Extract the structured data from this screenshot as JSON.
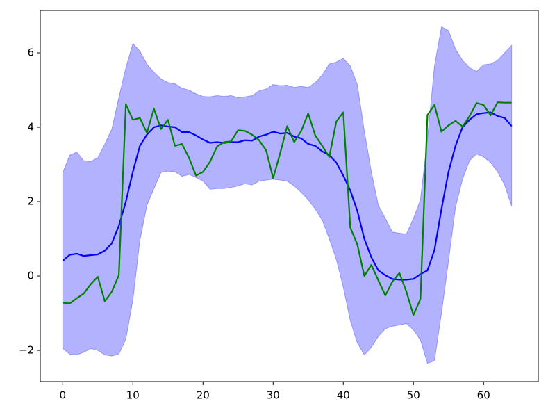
{
  "chart_data": {
    "type": "line",
    "x": [
      0,
      1,
      2,
      3,
      4,
      5,
      6,
      7,
      8,
      9,
      10,
      11,
      12,
      13,
      14,
      15,
      16,
      17,
      18,
      19,
      20,
      21,
      22,
      23,
      24,
      25,
      26,
      27,
      28,
      29,
      30,
      31,
      32,
      33,
      34,
      35,
      36,
      37,
      38,
      39,
      40,
      41,
      42,
      43,
      44,
      45,
      46,
      47,
      48,
      49,
      50,
      51,
      52,
      53,
      54,
      55,
      56,
      57,
      58,
      59,
      60,
      61,
      62,
      63,
      64
    ],
    "band": {
      "color": "#0000ff",
      "upper": [
        2.78,
        3.25,
        3.33,
        3.1,
        3.08,
        3.18,
        3.55,
        3.95,
        4.8,
        5.6,
        6.25,
        6.05,
        5.7,
        5.48,
        5.3,
        5.2,
        5.17,
        5.05,
        5.0,
        4.9,
        4.83,
        4.82,
        4.85,
        4.83,
        4.85,
        4.8,
        4.82,
        4.85,
        4.98,
        5.03,
        5.15,
        5.12,
        5.13,
        5.07,
        5.1,
        5.07,
        5.2,
        5.4,
        5.7,
        5.75,
        5.85,
        5.65,
        5.15,
        3.9,
        2.8,
        1.9,
        1.55,
        1.18,
        1.15,
        1.13,
        1.55,
        2.05,
        3.7,
        5.65,
        6.7,
        6.6,
        6.1,
        5.8,
        5.6,
        5.5,
        5.68,
        5.7,
        5.8,
        6.0,
        6.2
      ],
      "lower": [
        -1.95,
        -2.1,
        -2.12,
        -2.05,
        -1.95,
        -2.0,
        -2.12,
        -2.15,
        -2.1,
        -1.7,
        -0.65,
        0.95,
        1.9,
        2.35,
        2.78,
        2.82,
        2.8,
        2.68,
        2.73,
        2.65,
        2.55,
        2.33,
        2.35,
        2.35,
        2.38,
        2.42,
        2.48,
        2.45,
        2.55,
        2.58,
        2.6,
        2.58,
        2.55,
        2.42,
        2.25,
        2.05,
        1.8,
        1.5,
        1.0,
        0.45,
        -0.3,
        -1.2,
        -1.8,
        -2.12,
        -1.92,
        -1.62,
        -1.42,
        -1.35,
        -1.32,
        -1.28,
        -1.45,
        -1.72,
        -2.35,
        -2.28,
        -1.0,
        0.4,
        1.85,
        2.6,
        3.1,
        3.28,
        3.2,
        3.05,
        2.8,
        2.45,
        1.88
      ]
    },
    "series": [
      {
        "color": "#0000ff",
        "values": [
          0.41,
          0.57,
          0.6,
          0.54,
          0.56,
          0.58,
          0.68,
          0.88,
          1.35,
          2.0,
          2.8,
          3.5,
          3.8,
          4.0,
          4.05,
          4.02,
          4.0,
          3.87,
          3.87,
          3.78,
          3.67,
          3.58,
          3.6,
          3.58,
          3.6,
          3.6,
          3.65,
          3.64,
          3.75,
          3.8,
          3.88,
          3.83,
          3.85,
          3.75,
          3.7,
          3.55,
          3.5,
          3.35,
          3.25,
          3.05,
          2.7,
          2.3,
          1.75,
          1.0,
          0.5,
          0.15,
          0.02,
          -0.08,
          -0.1,
          -0.1,
          -0.08,
          0.05,
          0.15,
          0.7,
          1.8,
          2.8,
          3.5,
          4.0,
          4.2,
          4.35,
          4.38,
          4.4,
          4.3,
          4.25,
          4.03
        ]
      },
      {
        "color": "#008000",
        "values": [
          -0.72,
          -0.74,
          -0.6,
          -0.47,
          -0.22,
          -0.02,
          -0.68,
          -0.42,
          0.02,
          4.62,
          4.2,
          4.25,
          3.85,
          4.5,
          3.95,
          4.2,
          3.5,
          3.55,
          3.18,
          2.7,
          2.8,
          3.07,
          3.48,
          3.6,
          3.62,
          3.92,
          3.9,
          3.8,
          3.65,
          3.38,
          2.63,
          3.3,
          4.03,
          3.6,
          3.9,
          4.37,
          3.78,
          3.5,
          3.2,
          4.15,
          4.4,
          1.3,
          0.85,
          0.0,
          0.3,
          -0.12,
          -0.52,
          -0.15,
          0.08,
          -0.42,
          -1.05,
          -0.62,
          4.33,
          4.6,
          3.88,
          4.05,
          4.17,
          4.02,
          4.3,
          4.65,
          4.6,
          4.32,
          4.67,
          4.66,
          4.66
        ]
      }
    ],
    "xlim": [
      -3.2,
      67.8
    ],
    "ylim": [
      -2.84,
      7.14
    ],
    "xticks": [
      0,
      10,
      20,
      30,
      40,
      50,
      60
    ],
    "yticks": [
      {
        "value": -2,
        "label": "−2"
      },
      0,
      2,
      4,
      6
    ]
  }
}
